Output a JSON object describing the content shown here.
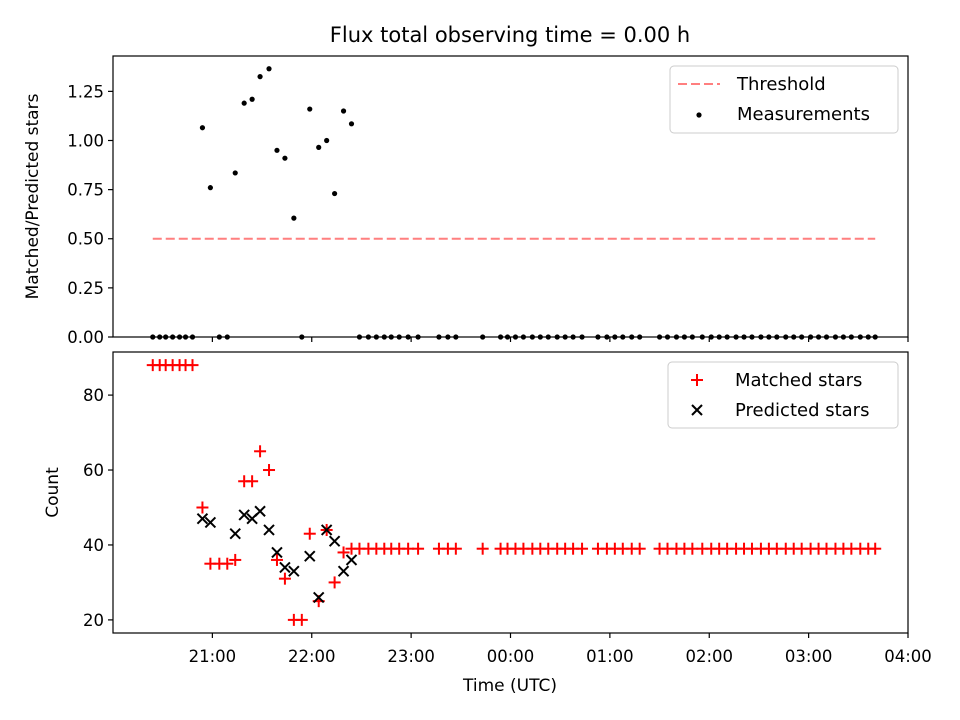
{
  "title": "Flux total observing time = 0.00 h",
  "colors": {
    "threshold": "#ff7f7f",
    "measurement": "#000000",
    "matched": "#ff0000",
    "predicted": "#000000"
  },
  "chart_data": [
    {
      "type": "scatter",
      "panel": "top",
      "title": "Flux total observing time = 0.00 h",
      "xlabel": "",
      "ylabel": "Matched/Predicted stars",
      "x_unit": "hours (UTC); values above 24 are after midnight",
      "xlim": [
        20.0,
        28.0
      ],
      "ylim": [
        0.0,
        1.43
      ],
      "yticks": [
        "0.00",
        "0.25",
        "0.50",
        "0.75",
        "1.00",
        "1.25"
      ],
      "yticks_values": [
        0.0,
        0.25,
        0.5,
        0.75,
        1.0,
        1.25
      ],
      "xticks_values": [
        21,
        22,
        23,
        24,
        25,
        26,
        27,
        28
      ],
      "legend": {
        "placement": "top-right",
        "entries": [
          "Threshold",
          "Measurements"
        ]
      },
      "series": [
        {
          "name": "Threshold",
          "kind": "dashed-line",
          "x": [
            20.4,
            27.67
          ],
          "y": [
            0.5,
            0.5
          ]
        },
        {
          "name": "Measurements",
          "kind": "points",
          "x": [
            20.4,
            20.47,
            20.53,
            20.6,
            20.67,
            20.73,
            20.8,
            20.9,
            20.98,
            21.07,
            21.15,
            21.23,
            21.32,
            21.4,
            21.48,
            21.57,
            21.65,
            21.73,
            21.82,
            21.9,
            21.98,
            22.07,
            22.15,
            22.23,
            22.32,
            22.4,
            22.48,
            22.57,
            22.65,
            22.73,
            22.8,
            22.88,
            22.97,
            23.07,
            23.28,
            23.37,
            23.45,
            23.72,
            23.9,
            23.97,
            24.05,
            24.13,
            24.22,
            24.3,
            24.38,
            24.47,
            24.55,
            24.63,
            24.72,
            24.88,
            24.97,
            25.05,
            25.13,
            25.22,
            25.3,
            25.5,
            25.58,
            25.67,
            25.75,
            25.83,
            25.93,
            26.02,
            26.1,
            26.18,
            26.27,
            26.35,
            26.43,
            26.52,
            26.6,
            26.68,
            26.77,
            26.85,
            26.93,
            27.02,
            27.1,
            27.18,
            27.27,
            27.35,
            27.43,
            27.52,
            27.6,
            27.67
          ],
          "y": [
            0,
            0,
            0,
            0,
            0,
            0,
            0,
            1.065,
            0.76,
            0,
            0,
            0.835,
            1.19,
            1.21,
            1.325,
            1.365,
            0.95,
            0.91,
            0.605,
            0,
            1.16,
            0.965,
            1.0,
            0.73,
            1.15,
            1.085,
            0,
            0,
            0,
            0,
            0,
            0,
            0,
            0,
            0,
            0,
            0,
            0,
            0,
            0,
            0,
            0,
            0,
            0,
            0,
            0,
            0,
            0,
            0,
            0,
            0,
            0,
            0,
            0,
            0,
            0,
            0,
            0,
            0,
            0,
            0,
            0,
            0,
            0,
            0,
            0,
            0,
            0,
            0,
            0,
            0,
            0,
            0,
            0,
            0,
            0,
            0,
            0,
            0,
            0,
            0,
            0
          ]
        }
      ]
    },
    {
      "type": "scatter",
      "panel": "bottom",
      "title": "",
      "xlabel": "Time (UTC)",
      "ylabel": "Count",
      "x_unit": "hours (UTC); values above 24 are after midnight",
      "xlim": [
        20.0,
        28.0
      ],
      "ylim": [
        16.5,
        91.5
      ],
      "xticks": [
        "21:00",
        "22:00",
        "23:00",
        "00:00",
        "01:00",
        "02:00",
        "03:00",
        "04:00"
      ],
      "xticks_values": [
        21,
        22,
        23,
        24,
        25,
        26,
        27,
        28
      ],
      "yticks": [
        "20",
        "40",
        "60",
        "80"
      ],
      "yticks_values": [
        20,
        40,
        60,
        80
      ],
      "legend": {
        "placement": "top-right",
        "entries": [
          "Matched stars",
          "Predicted stars"
        ]
      },
      "series": [
        {
          "name": "Matched stars",
          "marker": "plus",
          "x": [
            20.4,
            20.47,
            20.53,
            20.6,
            20.67,
            20.73,
            20.8,
            20.9,
            20.98,
            21.07,
            21.15,
            21.23,
            21.32,
            21.4,
            21.48,
            21.57,
            21.65,
            21.73,
            21.82,
            21.9,
            21.98,
            22.07,
            22.15,
            22.23,
            22.32,
            22.4,
            22.48,
            22.57,
            22.65,
            22.73,
            22.8,
            22.88,
            22.97,
            23.07,
            23.28,
            23.37,
            23.45,
            23.72,
            23.9,
            23.97,
            24.05,
            24.13,
            24.22,
            24.3,
            24.38,
            24.47,
            24.55,
            24.63,
            24.72,
            24.88,
            24.97,
            25.05,
            25.13,
            25.22,
            25.3,
            25.5,
            25.58,
            25.67,
            25.75,
            25.83,
            25.93,
            26.02,
            26.1,
            26.18,
            26.27,
            26.35,
            26.43,
            26.52,
            26.6,
            26.68,
            26.77,
            26.85,
            26.93,
            27.02,
            27.1,
            27.18,
            27.27,
            27.35,
            27.43,
            27.52,
            27.6,
            27.67
          ],
          "y": [
            88,
            88,
            88,
            88,
            88,
            88,
            88,
            50,
            35,
            35,
            35,
            36,
            57,
            57,
            65,
            60,
            36,
            31,
            20,
            20,
            43,
            25,
            44,
            30,
            38,
            39,
            39,
            39,
            39,
            39,
            39,
            39,
            39,
            39,
            39,
            39,
            39,
            39,
            39,
            39,
            39,
            39,
            39,
            39,
            39,
            39,
            39,
            39,
            39,
            39,
            39,
            39,
            39,
            39,
            39,
            39,
            39,
            39,
            39,
            39,
            39,
            39,
            39,
            39,
            39,
            39,
            39,
            39,
            39,
            39,
            39,
            39,
            39,
            39,
            39,
            39,
            39,
            39,
            39,
            39,
            39,
            39
          ]
        },
        {
          "name": "Predicted stars",
          "marker": "x",
          "x": [
            20.9,
            20.98,
            21.23,
            21.32,
            21.4,
            21.48,
            21.57,
            21.65,
            21.73,
            21.82,
            21.98,
            22.07,
            22.15,
            22.23,
            22.32,
            22.4
          ],
          "y": [
            47,
            46,
            43,
            48,
            47,
            49,
            44,
            38,
            34,
            33,
            37,
            26,
            44,
            41,
            33,
            36
          ]
        }
      ]
    }
  ]
}
